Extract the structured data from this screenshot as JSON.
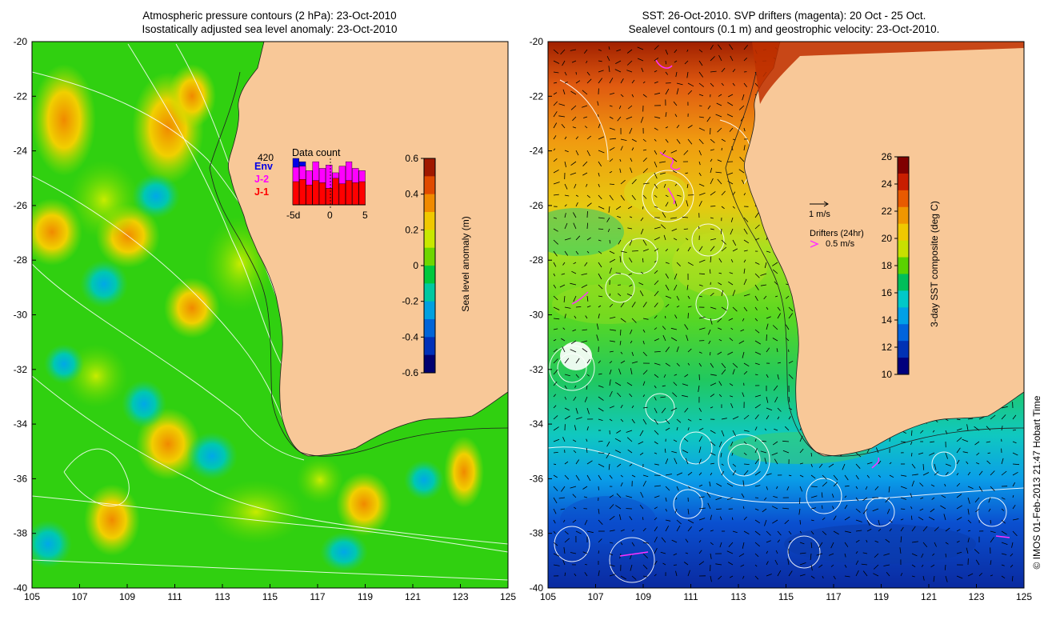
{
  "left_panel": {
    "title_line1": "Atmospheric pressure contours (2 hPa): 23-Oct-2010",
    "title_line2": "Isostatically adjusted sea level anomaly: 23-Oct-2010",
    "colorbar": {
      "label": "Sea level anomaly (m)",
      "ticks": [
        "0.6",
        "0.4",
        "0.2",
        "0",
        "-0.2",
        "-0.4",
        "-0.6"
      ],
      "colors": [
        "#a01800",
        "#e04a00",
        "#f08a00",
        "#f0c800",
        "#c8e800",
        "#6ed600",
        "#00c83c",
        "#00c8a0",
        "#00a0e0",
        "#0064d8",
        "#0030b8",
        "#000070"
      ]
    },
    "data_count": {
      "title": "Data count",
      "max_label": "420",
      "series": [
        {
          "name": "Env",
          "color": "#0000e6",
          "values": [
            420,
            390,
            0,
            0,
            0,
            0,
            0,
            0,
            0,
            0,
            0
          ]
        },
        {
          "name": "J-2",
          "color": "#ff00ff",
          "values": [
            340,
            350,
            310,
            390,
            330,
            360,
            290,
            350,
            390,
            330,
            310
          ]
        },
        {
          "name": "J-1",
          "color": "#ff0000",
          "values": [
            210,
            230,
            180,
            220,
            200,
            150,
            240,
            190,
            220,
            200,
            210
          ]
        }
      ],
      "x_ticks": [
        "-5d",
        "0",
        "5"
      ]
    }
  },
  "right_panel": {
    "title_line1": "SST: 26-Oct-2010. SVP drifters (magenta): 20 Oct - 25 Oct.",
    "title_line2": "Sealevel contours (0.1 m) and geostrophic velocity: 23-Oct-2010.",
    "colorbar": {
      "label": "3-day SST composite (deg C)",
      "ticks": [
        "26",
        "24",
        "22",
        "20",
        "18",
        "16",
        "14",
        "12",
        "10"
      ],
      "colors": [
        "#800000",
        "#c81e00",
        "#e85a00",
        "#f09600",
        "#f0c800",
        "#c8e000",
        "#5ad200",
        "#00be5a",
        "#00c8c8",
        "#00a0e6",
        "#0064dc",
        "#0032b4",
        "#00007d"
      ]
    },
    "velocity_scale_label": "1 m/s",
    "drifters_label": "Drifters (24hr)",
    "drifters_speed_label": "0.5 m/s"
  },
  "map": {
    "lat_ticks": [
      "-20",
      "-22",
      "-24",
      "-26",
      "-28",
      "-30",
      "-32",
      "-34",
      "-36",
      "-38",
      "-40"
    ],
    "lon_ticks": [
      "105",
      "107",
      "109",
      "111",
      "113",
      "115",
      "117",
      "119",
      "121",
      "123",
      "125"
    ],
    "land_color": "#f8c898",
    "left_ocean_color": "#30d010",
    "right_ocean_colors": {
      "north": "#e07a10",
      "mid": "#a0e030",
      "south_mid": "#10c8b0",
      "south": "#1040c0"
    }
  },
  "credit": "© IMOS 01-Feb-2013 21:47 Hobart Time"
}
